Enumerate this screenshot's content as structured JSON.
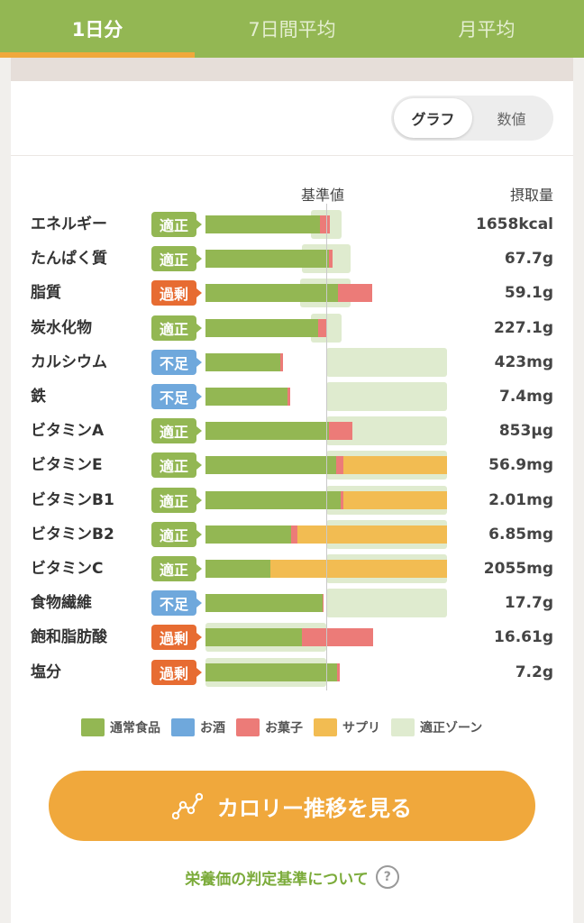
{
  "tabs": [
    {
      "label": "1日分",
      "active": true
    },
    {
      "label": "7日間平均",
      "active": false
    },
    {
      "label": "月平均",
      "active": false
    }
  ],
  "view_toggle": {
    "graph": "グラフ",
    "values": "数値",
    "selected": "graph"
  },
  "headers": {
    "reference": "基準値",
    "intake": "摂取量"
  },
  "statuses": {
    "ok": {
      "label": "適正",
      "color": "#93b753"
    },
    "over": {
      "label": "過剰",
      "color": "#e76c32"
    },
    "low": {
      "label": "不足",
      "color": "#6fa8dc"
    }
  },
  "nutrients": [
    {
      "name": "エネルギー",
      "status": "ok",
      "value": "1658kcal",
      "zone": [
        0.87,
        1.13
      ],
      "food": 0.95,
      "alcohol": 0,
      "snack": 0.08,
      "supplement": 0
    },
    {
      "name": "たんぱく質",
      "status": "ok",
      "value": "67.7g",
      "zone": [
        0.8,
        1.2
      ],
      "food": 1.02,
      "alcohol": 0,
      "snack": 0.03,
      "supplement": 0
    },
    {
      "name": "脂質",
      "status": "over",
      "value": "59.1g",
      "zone": [
        0.78,
        1.2
      ],
      "food": 1.1,
      "alcohol": 0,
      "snack": 0.28,
      "supplement": 0
    },
    {
      "name": "炭水化物",
      "status": "ok",
      "value": "227.1g",
      "zone": [
        0.87,
        1.13
      ],
      "food": 0.93,
      "alcohol": 0,
      "snack": 0.07,
      "supplement": 0
    },
    {
      "name": "カルシウム",
      "status": "low",
      "value": "423mg",
      "zone": [
        1.0,
        2.0
      ],
      "food": 0.62,
      "alcohol": 0,
      "snack": 0.02,
      "supplement": 0
    },
    {
      "name": "鉄",
      "status": "low",
      "value": "7.4mg",
      "zone": [
        1.0,
        2.0
      ],
      "food": 0.68,
      "alcohol": 0,
      "snack": 0.02,
      "supplement": 0
    },
    {
      "name": "ビタミンA",
      "status": "ok",
      "value": "853μg",
      "zone": [
        1.0,
        2.0
      ],
      "food": 1.02,
      "alcohol": 0,
      "snack": 0.2,
      "supplement": 0
    },
    {
      "name": "ビタミンE",
      "status": "ok",
      "value": "56.9mg",
      "zone": [
        1.0,
        2.0
      ],
      "food": 1.08,
      "alcohol": 0,
      "snack": 0.06,
      "supplement": 0.86
    },
    {
      "name": "ビタミンB1",
      "status": "ok",
      "value": "2.01mg",
      "zone": [
        1.0,
        2.0
      ],
      "food": 1.12,
      "alcohol": 0,
      "snack": 0.02,
      "supplement": 0.86
    },
    {
      "name": "ビタミンB2",
      "status": "ok",
      "value": "6.85mg",
      "zone": [
        1.0,
        2.0
      ],
      "food": 0.71,
      "alcohol": 0,
      "snack": 0.05,
      "supplement": 1.24
    },
    {
      "name": "ビタミンC",
      "status": "ok",
      "value": "2055mg",
      "zone": [
        1.0,
        2.0
      ],
      "food": 0.54,
      "alcohol": 0,
      "snack": 0,
      "supplement": 1.46
    },
    {
      "name": "食物繊維",
      "status": "low",
      "value": "17.7g",
      "zone": [
        1.0,
        2.0
      ],
      "food": 0.97,
      "alcohol": 0,
      "snack": 0.01,
      "supplement": 0
    },
    {
      "name": "飽和脂肪酸",
      "status": "over",
      "value": "16.61g",
      "zone": [
        0,
        1.0
      ],
      "food": 0.8,
      "alcohol": 0,
      "snack": 0.59,
      "supplement": 0
    },
    {
      "name": "塩分",
      "status": "over",
      "value": "7.2g",
      "zone": [
        0,
        1.0
      ],
      "food": 1.09,
      "alcohol": 0,
      "snack": 0.02,
      "supplement": 0
    }
  ],
  "legend": [
    {
      "label": "通常食品",
      "color": "#93b753"
    },
    {
      "label": "お酒",
      "color": "#6fa8dc"
    },
    {
      "label": "お菓子",
      "color": "#ec7b78"
    },
    {
      "label": "サプリ",
      "color": "#f2bc52"
    },
    {
      "label": "適正ゾーン",
      "color": "#dfebcf"
    }
  ],
  "cta": {
    "label": "カロリー推移を見る",
    "icon": "line-chart-icon"
  },
  "criteria_link": {
    "label": "栄養価の判定基準について",
    "icon": "question-circle-icon"
  }
}
